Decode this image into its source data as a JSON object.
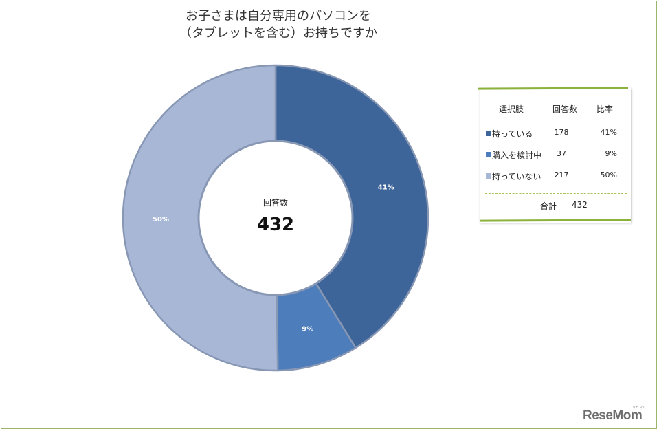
{
  "chart_data": {
    "type": "pie",
    "donut": true,
    "title_lines": [
      "お子さまは自分専用のパソコンを",
      "（タブレットを含む）お持ちですか"
    ],
    "categories": [
      "持っている",
      "購入を検討中",
      "持っていない"
    ],
    "values": [
      178,
      37,
      217
    ],
    "percent_labels": [
      "41%",
      "9%",
      "50%"
    ],
    "colors": [
      "#3e6599",
      "#4d7dbb",
      "#a8b7d6"
    ],
    "center_label": "回答数",
    "center_value": "432",
    "legend_placement": "right"
  },
  "table": {
    "headers": [
      "選択肢",
      "回答数",
      "比率"
    ],
    "rows": [
      {
        "label": "持っている",
        "count": "178",
        "pct": "41%"
      },
      {
        "label": "購入を検討中",
        "count": "37",
        "pct": "9%"
      },
      {
        "label": "持っていない",
        "count": "217",
        "pct": "50%"
      }
    ],
    "total_label": "合計",
    "total_value": "432"
  },
  "logo": {
    "text": "ReseMom",
    "small": "リセマム"
  }
}
